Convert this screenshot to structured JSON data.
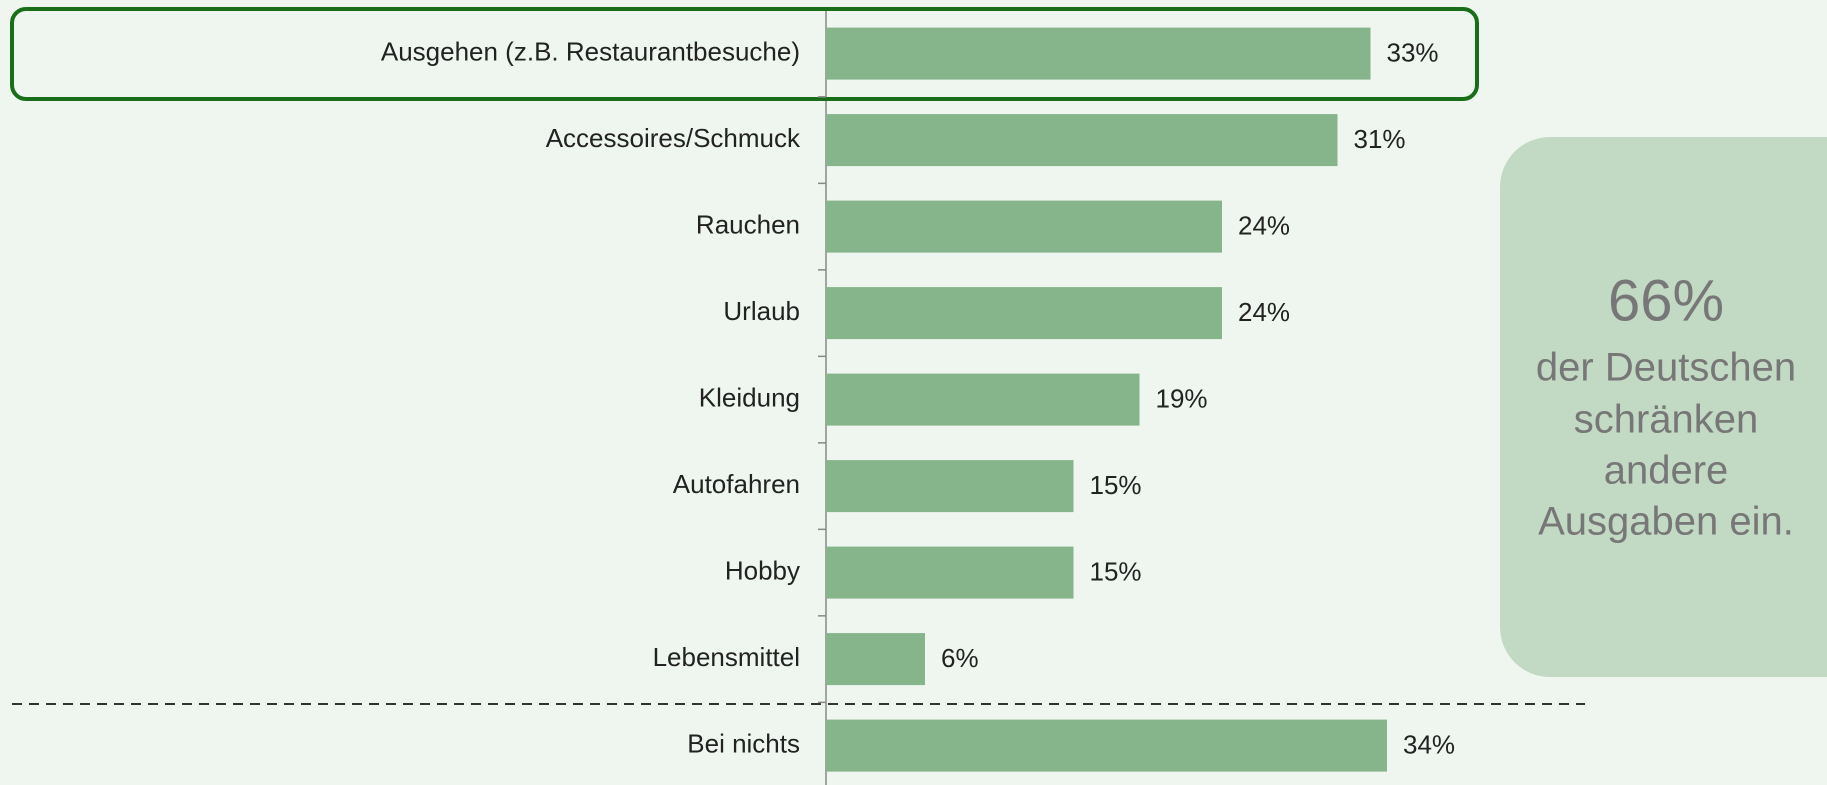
{
  "chart_data": {
    "type": "bar",
    "orientation": "horizontal",
    "categories": [
      "Ausgehen (z.B. Restaurantbesuche)",
      "Accessoires/Schmuck",
      "Rauchen",
      "Urlaub",
      "Kleidung",
      "Autofahren",
      "Hobby",
      "Lebensmittel",
      "Bei nichts"
    ],
    "values": [
      33,
      31,
      24,
      24,
      19,
      15,
      15,
      6,
      34
    ],
    "value_labels": [
      "33%",
      "31%",
      "24%",
      "24%",
      "19%",
      "15%",
      "15%",
      "6%",
      "34%"
    ],
    "color": "#86b48b",
    "callout": {
      "headline": "66%",
      "lines": [
        "der Deutschen",
        "schränken",
        "andere",
        "Ausgaben ein."
      ]
    }
  }
}
